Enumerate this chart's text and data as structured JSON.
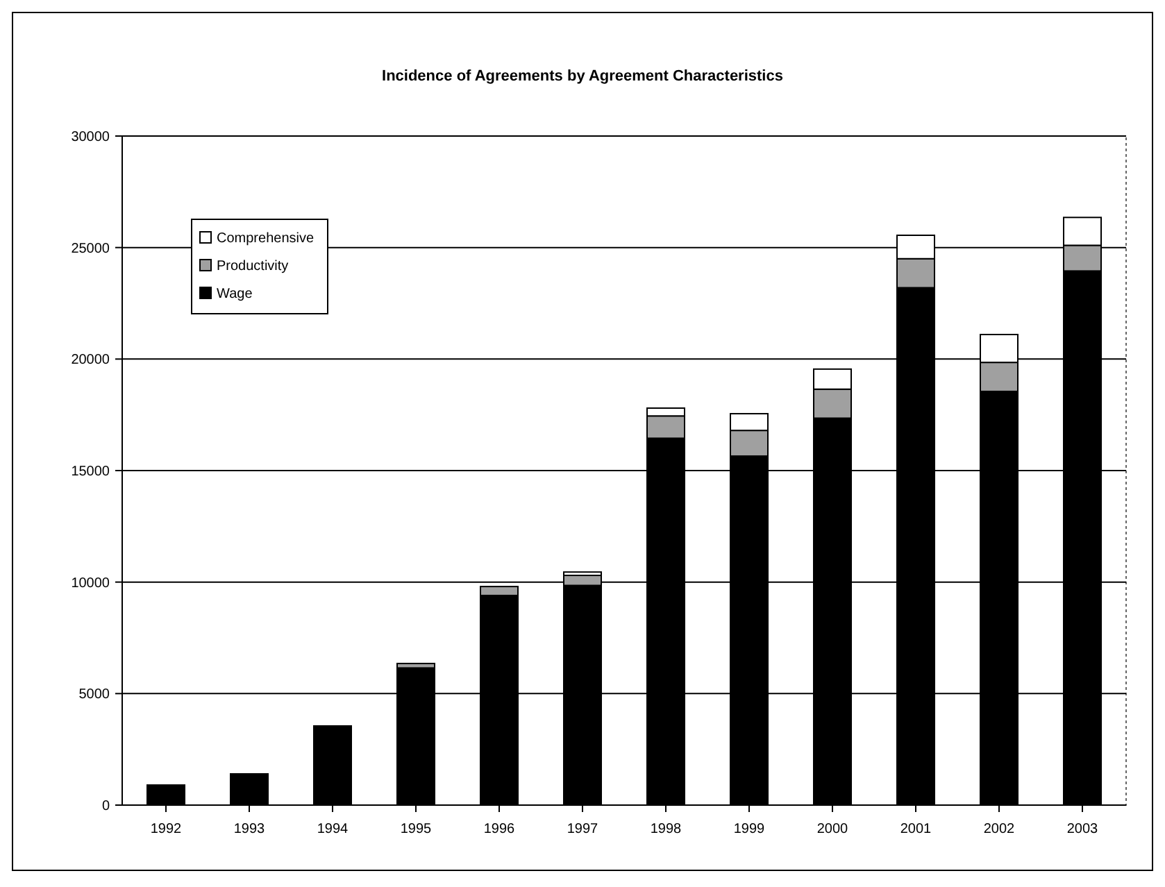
{
  "chart_data": {
    "type": "bar",
    "title": "Incidence of Agreements by Agreement Characteristics",
    "categories": [
      "1992",
      "1993",
      "1994",
      "1995",
      "1996",
      "1997",
      "1998",
      "1999",
      "2000",
      "2001",
      "2002",
      "2003"
    ],
    "stacked": true,
    "series": [
      {
        "name": "Wage",
        "color": "#000000",
        "values": [
          900,
          1400,
          3550,
          6150,
          9400,
          9850,
          16450,
          15650,
          17350,
          23200,
          18550,
          23950
        ]
      },
      {
        "name": "Productivity",
        "color": "#a0a0a0",
        "values": [
          0,
          0,
          0,
          200,
          400,
          450,
          1000,
          1150,
          1300,
          1300,
          1300,
          1150
        ]
      },
      {
        "name": "Comprehensive",
        "color": "#ffffff",
        "values": [
          0,
          0,
          0,
          0,
          0,
          150,
          350,
          750,
          900,
          1050,
          1250,
          1250
        ]
      }
    ],
    "ylim": [
      0,
      30000
    ],
    "yticks": [
      0,
      5000,
      10000,
      15000,
      20000,
      25000,
      30000
    ],
    "grid": "y",
    "legend": "top left"
  }
}
